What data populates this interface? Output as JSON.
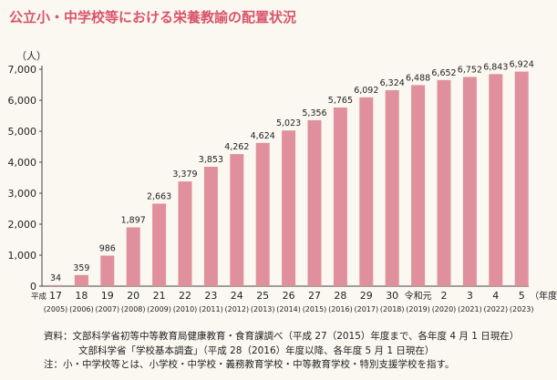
{
  "title": "公立小・中学校等における栄養教諭の配置状況",
  "chart_data": {
    "type": "bar",
    "ylabel": "（人）",
    "xlabel": "（年度）",
    "ylim": [
      0,
      7000
    ],
    "yticks": [
      "0",
      "1,000",
      "2,000",
      "3,000",
      "4,000",
      "5,000",
      "6,000",
      "7,000"
    ],
    "bar_color": "#e0909c",
    "era_label": "平成",
    "categories": [
      "17",
      "18",
      "19",
      "20",
      "21",
      "22",
      "23",
      "24",
      "25",
      "26",
      "27",
      "28",
      "29",
      "30",
      "令和元",
      "2",
      "3",
      "4",
      "5"
    ],
    "sublabels": [
      "(2005)",
      "(2006)",
      "(2007)",
      "(2008)",
      "(2009)",
      "(2010)",
      "(2011)",
      "(2012)",
      "(2013)",
      "(2014)",
      "(2015)",
      "(2016)",
      "(2017)",
      "(2018)",
      "(2019)",
      "(2020)",
      "(2021)",
      "(2022)",
      "(2023)"
    ],
    "values": [
      34,
      359,
      986,
      1897,
      2663,
      3379,
      3853,
      4262,
      4624,
      5023,
      5356,
      5765,
      6092,
      6324,
      6488,
      6652,
      6752,
      6843,
      6924
    ],
    "value_labels": [
      "34",
      "359",
      "986",
      "1,897",
      "2,663",
      "3,379",
      "3,853",
      "4,262",
      "4,624",
      "5,023",
      "5,356",
      "5,765",
      "6,092",
      "6,324",
      "6,488",
      "6,652",
      "6,752",
      "6,843",
      "6,924"
    ]
  },
  "notes": {
    "line1": "資料：文部科学省初等中等教育局健康教育・食育課調べ（平成 27（2015）年度まで、各年度 4 月 1 日現在）",
    "line2": "文部科学省「学校基本調査」（平成 28（2016）年度以降、各年度 5 月 1 日現在）",
    "line3": "注：小・中学校等とは、小学校・中学校・義務教育学校・中等教育学校・特別支援学校を指す。"
  }
}
